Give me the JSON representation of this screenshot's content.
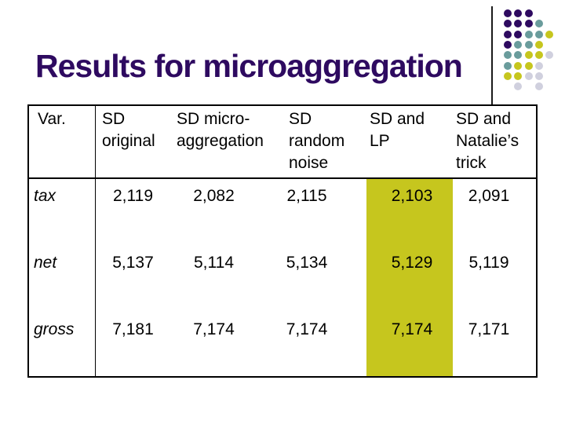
{
  "slide": {
    "title": "Results for microaggregation",
    "colors": {
      "title_text": "#2e0a60",
      "table_border": "#000000",
      "highlight_column": "#c6c61e",
      "background": "#ffffff"
    }
  },
  "table": {
    "header": [
      "Var.",
      "SD\noriginal",
      "SD micro-\naggregation",
      "SD\nrandom\nnoise",
      "SD and\nLP",
      "SD and\nNatalie’s\ntrick"
    ],
    "highlighted_column_label": "SD and LP",
    "rows": [
      {
        "label": "tax",
        "values": [
          "2,119",
          "2,082",
          "2,115",
          "2,103",
          "2,091"
        ]
      },
      {
        "label": "net",
        "values": [
          "5,137",
          "5,114",
          "5,134",
          "5,129",
          "5,119"
        ]
      },
      {
        "label": "gross",
        "values": [
          "7,181",
          "7,174",
          "7,174",
          "7,174",
          "7,171"
        ]
      }
    ]
  },
  "decoration": {
    "palette": {
      "P": "#2e0a60",
      "T": "#6a9c9c",
      "Y": "#c6c61e",
      "G": "#d0d0de"
    },
    "rows": [
      "PPP..",
      "PPPT.",
      "PPTTY",
      "PTTY.",
      "TTYYG",
      "TYYG.",
      "YYGG.",
      ".G.G."
    ]
  }
}
